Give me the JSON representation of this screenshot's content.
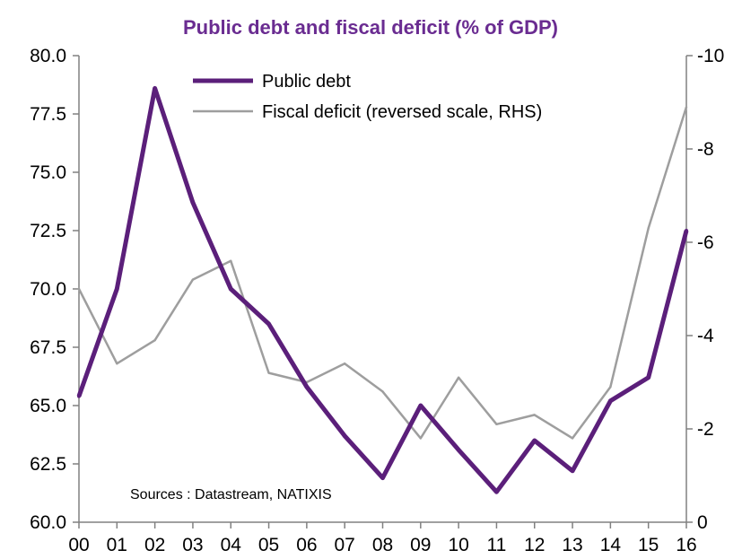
{
  "colors": {
    "public_debt": "#5b1f7a",
    "fiscal_deficit": "#9e9e9e",
    "title": "#6a2c91",
    "axis": "#808080"
  },
  "chart_data": {
    "type": "line",
    "title": "Public debt and fiscal deficit (% of GDP)",
    "source": "Sources : Datastream, NATIXIS",
    "categories": [
      "00",
      "01",
      "02",
      "03",
      "04",
      "05",
      "06",
      "07",
      "08",
      "09",
      "10",
      "11",
      "12",
      "13",
      "14",
      "15",
      "16"
    ],
    "left_axis": {
      "ylim": [
        60.0,
        80.0
      ],
      "ticks": [
        "80.0",
        "77.5",
        "75.0",
        "72.5",
        "70.0",
        "67.5",
        "65.0",
        "62.5",
        "60.0"
      ]
    },
    "right_axis": {
      "ylim": [
        0,
        -10
      ],
      "reversed": true,
      "ticks": [
        "-10",
        "-8",
        "-6",
        "-4",
        "-2",
        "0"
      ]
    },
    "legend": {
      "placement": "top-center",
      "entries": [
        "Public debt",
        "Fiscal deficit (reversed scale, RHS)"
      ]
    },
    "series": [
      {
        "name": "Public debt",
        "axis": "left",
        "values": [
          65.4,
          70.0,
          78.6,
          73.7,
          70.0,
          68.5,
          65.8,
          63.7,
          61.9,
          65.0,
          63.1,
          61.3,
          63.5,
          62.2,
          65.2,
          66.2,
          72.5
        ]
      },
      {
        "name": "Fiscal deficit (reversed scale, RHS)",
        "axis": "right",
        "values": [
          -5.0,
          -3.4,
          -3.9,
          -5.2,
          -5.6,
          -3.2,
          -3.0,
          -3.4,
          -2.8,
          -1.8,
          -3.1,
          -2.1,
          -2.3,
          -1.8,
          -2.9,
          -6.3,
          -8.9
        ]
      }
    ]
  }
}
